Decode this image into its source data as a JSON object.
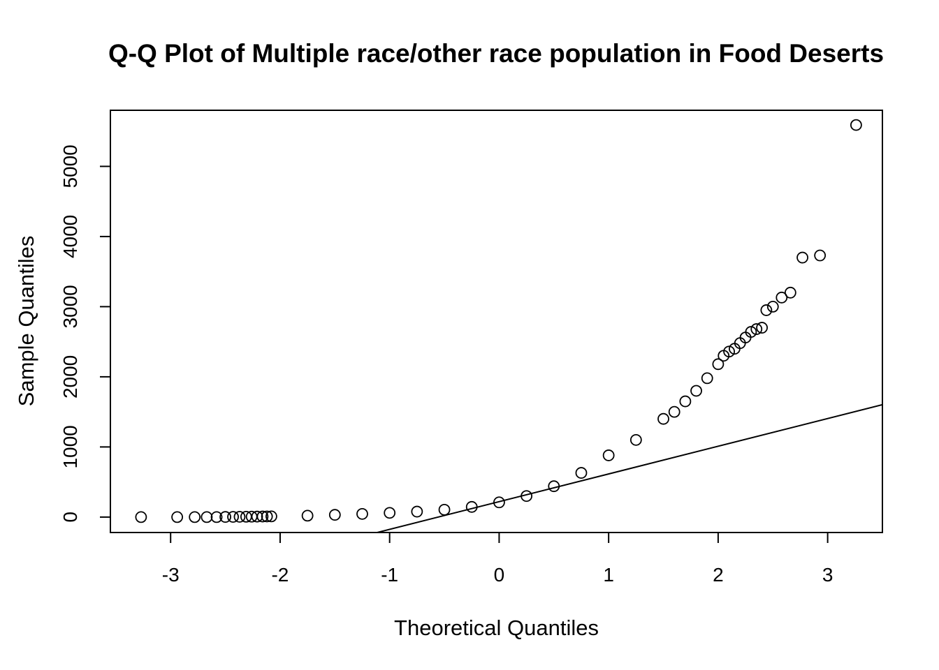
{
  "chart_data": {
    "type": "scatter",
    "title": "Q-Q Plot of Multiple race/other race population in Food Deserts",
    "xlabel": "Theoretical Quantiles",
    "ylabel": "Sample Quantiles",
    "xlim": [
      -3.55,
      3.5
    ],
    "ylim": [
      -220,
      5800
    ],
    "xticks": [
      "-3",
      "-2",
      "-1",
      "0",
      "1",
      "2",
      "3"
    ],
    "xtick_values": [
      -3,
      -2,
      -1,
      0,
      1,
      2,
      3
    ],
    "yticks": [
      "0",
      "1000",
      "2000",
      "3000",
      "4000",
      "5000"
    ],
    "ytick_values": [
      0,
      1000,
      2000,
      3000,
      4000,
      5000
    ],
    "grid": false,
    "legend": "none",
    "reference_line": {
      "intercept": 220,
      "slope": 395
    },
    "points": [
      [
        -3.27,
        0
      ],
      [
        -2.94,
        0
      ],
      [
        -2.78,
        0
      ],
      [
        -2.67,
        0
      ],
      [
        -2.58,
        0
      ],
      [
        -2.5,
        2
      ],
      [
        -2.43,
        3
      ],
      [
        -2.37,
        4
      ],
      [
        -2.31,
        5
      ],
      [
        -2.26,
        6
      ],
      [
        -2.21,
        7
      ],
      [
        -2.16,
        8
      ],
      [
        -2.12,
        9
      ],
      [
        -2.08,
        10
      ],
      [
        -1.75,
        20
      ],
      [
        -1.5,
        32
      ],
      [
        -1.25,
        45
      ],
      [
        -1.0,
        60
      ],
      [
        -0.75,
        78
      ],
      [
        -0.5,
        105
      ],
      [
        -0.25,
        145
      ],
      [
        0.0,
        210
      ],
      [
        0.25,
        300
      ],
      [
        0.5,
        440
      ],
      [
        0.75,
        630
      ],
      [
        1.0,
        880
      ],
      [
        1.25,
        1100
      ],
      [
        1.5,
        1400
      ],
      [
        1.6,
        1500
      ],
      [
        1.7,
        1650
      ],
      [
        1.8,
        1800
      ],
      [
        1.9,
        1980
      ],
      [
        2.0,
        2180
      ],
      [
        2.05,
        2300
      ],
      [
        2.1,
        2360
      ],
      [
        2.15,
        2400
      ],
      [
        2.2,
        2480
      ],
      [
        2.25,
        2560
      ],
      [
        2.3,
        2640
      ],
      [
        2.35,
        2680
      ],
      [
        2.4,
        2700
      ],
      [
        2.44,
        2950
      ],
      [
        2.5,
        3000
      ],
      [
        2.58,
        3130
      ],
      [
        2.66,
        3200
      ],
      [
        2.77,
        3700
      ],
      [
        2.93,
        3730
      ],
      [
        3.26,
        5590
      ]
    ]
  }
}
